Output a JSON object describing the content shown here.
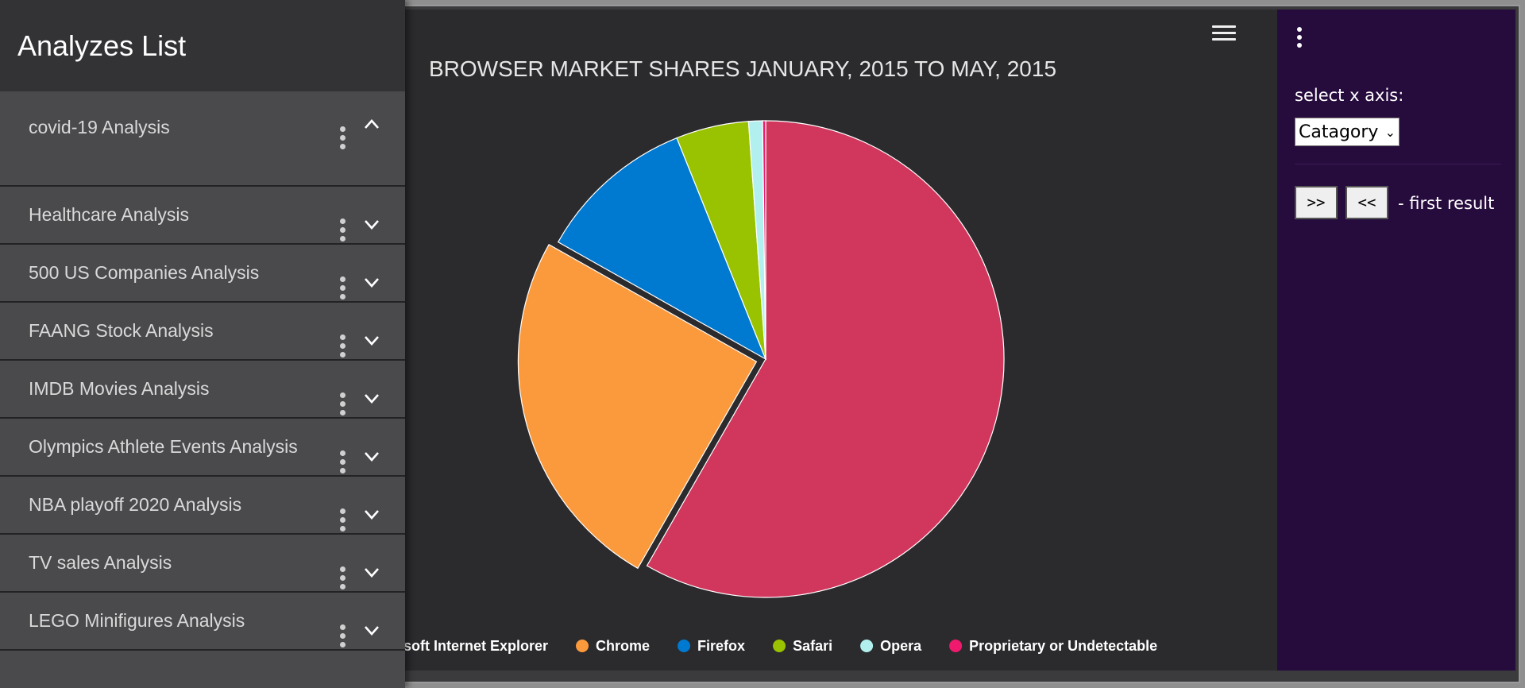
{
  "sidebar": {
    "title": "Analyzes List",
    "items": [
      {
        "label": "covid-19 Analysis",
        "expanded": true
      },
      {
        "label": "Healthcare Analysis",
        "expanded": false
      },
      {
        "label": "500 US Companies Analysis",
        "expanded": false
      },
      {
        "label": "FAANG Stock Analysis",
        "expanded": false
      },
      {
        "label": "IMDB Movies Analysis",
        "expanded": false
      },
      {
        "label": "Olympics Athlete Events Analysis",
        "expanded": false
      },
      {
        "label": "NBA playoff 2020 Analysis",
        "expanded": false
      },
      {
        "label": "TV sales Analysis",
        "expanded": false
      },
      {
        "label": "LEGO Minifigures Analysis",
        "expanded": false
      }
    ]
  },
  "right_panel": {
    "axis_label": "select x axis:",
    "axis_selected": "Catagory",
    "next_label": ">>",
    "prev_label": "<<",
    "result_text": "- first result"
  },
  "chart_data": {
    "type": "pie",
    "title": "BROWSER MARKET SHARES JANUARY, 2015 TO MAY, 2015",
    "series": [
      {
        "name": "Microsoft Internet Explorer",
        "value": 56.33,
        "color": "#d1375d"
      },
      {
        "name": "Chrome",
        "value": 24.03,
        "color": "#fb9a3c",
        "sliced": true
      },
      {
        "name": "Firefox",
        "value": 10.38,
        "color": "#0079d1"
      },
      {
        "name": "Safari",
        "value": 4.77,
        "color": "#99c300"
      },
      {
        "name": "Opera",
        "value": 0.91,
        "color": "#b2f0f0"
      },
      {
        "name": "Proprietary or Undetectable",
        "value": 0.2,
        "color": "#ef1a6e"
      }
    ],
    "legend_position": "bottom",
    "legend_visible_first_text": "rosoft Internet Explorer"
  },
  "colors": {
    "chart_bg": "#2b2a2d",
    "panel_bg": "#260b3d",
    "sidebar_bg": "#4a494c",
    "sidebar_header_bg": "#333235"
  }
}
